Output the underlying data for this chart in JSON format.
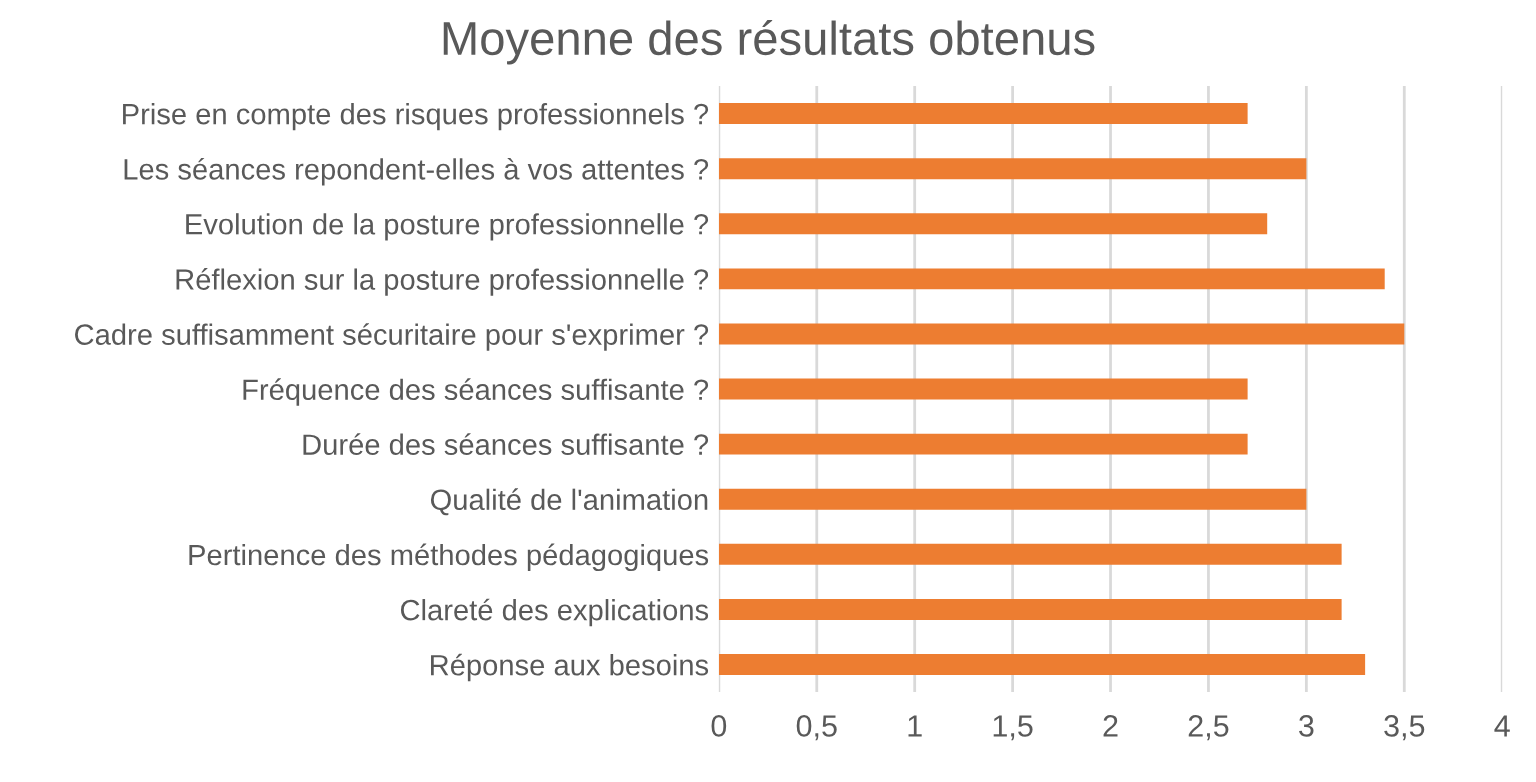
{
  "chart_data": {
    "type": "bar",
    "orientation": "horizontal",
    "title": "Moyenne des résultats obtenus",
    "categories": [
      "Prise en compte des risques professionnels ?",
      "Les séances repondent-elles à vos attentes ?",
      "Evolution de la posture professionnelle ?",
      "Réflexion sur la posture professionnelle ?",
      "Cadre suffisamment sécuritaire pour s'exprimer ?",
      "Fréquence des séances suffisante ?",
      "Durée des séances suffisante ?",
      "Qualité de l'animation",
      "Pertinence des méthodes pédagogiques",
      "Clareté des explications",
      "Réponse aux besoins"
    ],
    "values": [
      2.7,
      3.0,
      2.8,
      3.4,
      3.5,
      2.7,
      2.7,
      3.0,
      3.18,
      3.18,
      3.3
    ],
    "color": "#ed7d31",
    "xlim": [
      0,
      4
    ],
    "xticks": [
      0,
      {
        "value": 0.5,
        "label": "0,5"
      },
      1,
      {
        "value": 1.5,
        "label": "1,5"
      },
      2,
      {
        "value": 2.5,
        "label": "2,5"
      },
      3,
      {
        "value": 3.5,
        "label": "3,5"
      },
      4
    ],
    "grid": "x",
    "legend": false
  }
}
